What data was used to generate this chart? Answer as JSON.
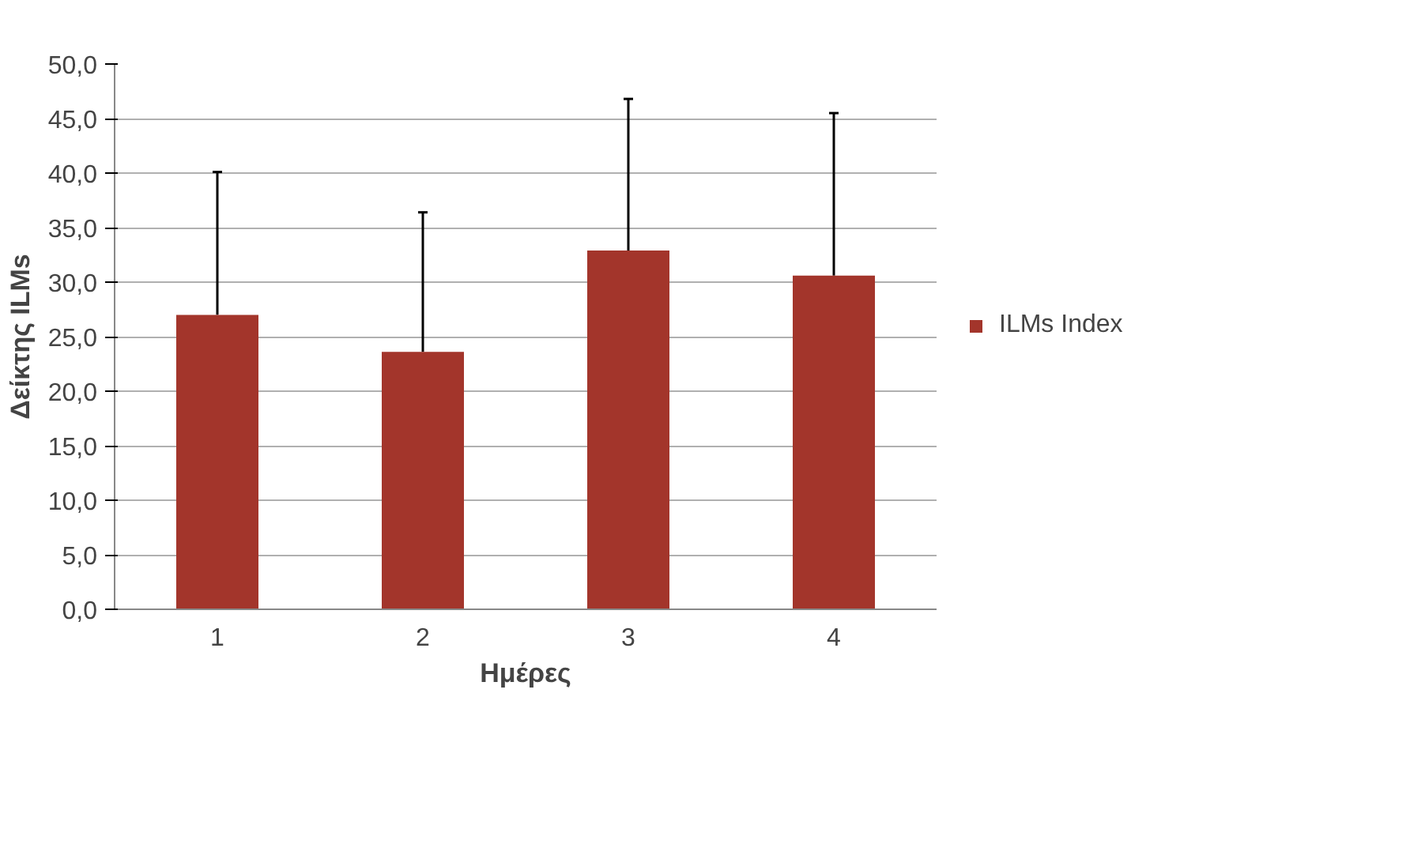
{
  "chart_data": {
    "type": "bar",
    "xlabel": "Ημέρες",
    "ylabel": "Δείκτης ILMs",
    "categories": [
      "1",
      "2",
      "3",
      "4"
    ],
    "series": [
      {
        "name": "ILMs Index",
        "color": "#a3352b",
        "values": [
          27.0,
          23.6,
          32.9,
          30.6
        ],
        "errors": [
          [
            27.0,
            40.1
          ],
          [
            23.6,
            36.4
          ],
          [
            32.9,
            46.8
          ],
          [
            30.6,
            45.5
          ]
        ]
      }
    ],
    "ylim": [
      0,
      50
    ],
    "yticks": [
      {
        "value": 0,
        "label": "0,0"
      },
      {
        "value": 5,
        "label": "5,0"
      },
      {
        "value": 10,
        "label": "10,0"
      },
      {
        "value": 15,
        "label": "15,0"
      },
      {
        "value": 20,
        "label": "20,0"
      },
      {
        "value": 25,
        "label": "25,0"
      },
      {
        "value": 30,
        "label": "30,0"
      },
      {
        "value": 35,
        "label": "35,0"
      },
      {
        "value": 40,
        "label": "40,0"
      },
      {
        "value": 45,
        "label": "45,0"
      },
      {
        "value": 50,
        "label": "50,0"
      }
    ],
    "grid": "y",
    "legend": "right"
  }
}
